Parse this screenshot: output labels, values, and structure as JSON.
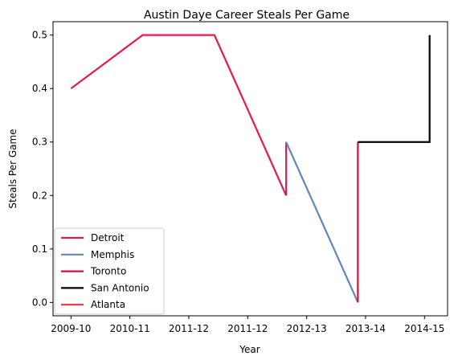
{
  "chart_data": {
    "type": "line",
    "title": "Austin Daye Career Steals Per Game",
    "xlabel": "Year",
    "ylabel": "Steals Per Game",
    "x_ticks": [
      "2009-10",
      "2010-11",
      "2011-12",
      "2011-12",
      "2012-13",
      "2013-14",
      "2014-15"
    ],
    "y_ticks": [
      "0.0",
      "0.1",
      "0.2",
      "0.3",
      "0.4",
      "0.5"
    ],
    "ylim": [
      -0.025,
      0.525
    ],
    "grid": false,
    "legend_position": "lower-left",
    "series": [
      {
        "name": "Detroit",
        "color": "#e8174f",
        "points": [
          [
            0.0,
            0.4
          ],
          [
            1.4,
            0.5
          ],
          [
            2.8,
            0.5
          ],
          [
            4.2,
            0.2
          ],
          [
            4.2,
            0.3
          ]
        ]
      },
      {
        "name": "Memphis",
        "color": "#5d88be",
        "points": [
          [
            4.2,
            0.3
          ],
          [
            5.6,
            0.0
          ]
        ]
      },
      {
        "name": "Toronto",
        "color": "#ce1141",
        "points": [
          [
            5.6,
            0.0
          ],
          [
            5.6,
            0.3
          ]
        ]
      },
      {
        "name": "San Antonio",
        "color": "#000000",
        "points": [
          [
            5.6,
            0.3
          ],
          [
            7.0,
            0.3
          ],
          [
            7.0,
            0.5
          ]
        ]
      },
      {
        "name": "Atlanta",
        "color": "#e03a3e",
        "points": []
      }
    ]
  }
}
